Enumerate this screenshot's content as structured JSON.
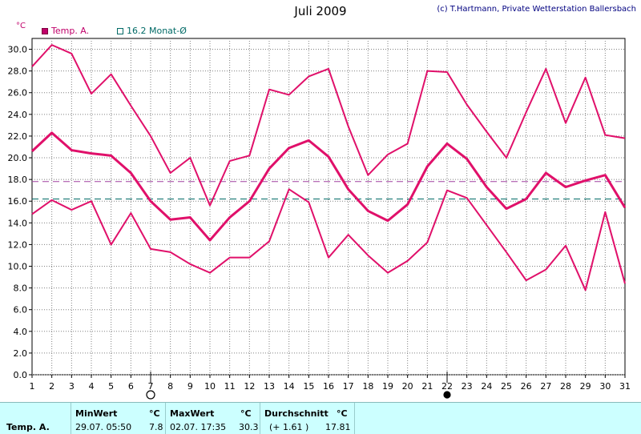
{
  "header": {
    "title": "Juli 2009",
    "copyright": "(c) T.Hartmann, Private Wetterstation Ballersbach",
    "unit_label": "°C"
  },
  "legend": {
    "temp_label": "Temp. A.",
    "avg_label": "16.2 Monat-Ø"
  },
  "colors": {
    "series": "#e0106a",
    "grid": "#808080",
    "avg_line": "#006a66",
    "mean_line": "#a040a0",
    "stats_bg": "#ccffff"
  },
  "chart_data": {
    "type": "line",
    "title": "Juli 2009",
    "ylabel": "°C",
    "xlabel": "",
    "x": [
      1,
      2,
      3,
      4,
      5,
      6,
      7,
      8,
      9,
      10,
      11,
      12,
      13,
      14,
      15,
      16,
      17,
      18,
      19,
      20,
      21,
      22,
      23,
      24,
      25,
      26,
      27,
      28,
      29,
      30,
      31
    ],
    "x_ticks": [
      "1",
      "2",
      "3",
      "4",
      "5",
      "6",
      "7",
      "8",
      "9",
      "10",
      "11",
      "12",
      "13",
      "14",
      "15",
      "16",
      "17",
      "18",
      "19",
      "20",
      "21",
      "22",
      "23",
      "24",
      "25",
      "26",
      "27",
      "28",
      "29",
      "30",
      "31"
    ],
    "y_ticks": [
      "0.0",
      "2.0",
      "4.0",
      "6.0",
      "8.0",
      "10.0",
      "12.0",
      "14.0",
      "16.0",
      "18.0",
      "20.0",
      "22.0",
      "24.0",
      "26.0",
      "28.0",
      "30.0"
    ],
    "ylim": [
      0,
      31
    ],
    "grid": true,
    "series": [
      {
        "name": "Temp. A.",
        "values": [
          28.4,
          30.4,
          29.6,
          25.9,
          27.7,
          24.8,
          22.0,
          18.6,
          20.0,
          15.6,
          19.7,
          20.2,
          26.3,
          25.8,
          27.5,
          28.2,
          22.9,
          18.4,
          20.3,
          21.3,
          28.0,
          27.9,
          24.9,
          22.4,
          20.0,
          24.2,
          28.2,
          23.2,
          27.4,
          22.1,
          21.8
        ]
      },
      {
        "name": "Temp. A.",
        "values": [
          20.6,
          22.3,
          20.7,
          20.4,
          20.2,
          18.6,
          16.0,
          14.3,
          14.5,
          12.4,
          14.5,
          16.0,
          19.0,
          20.9,
          21.6,
          20.1,
          17.1,
          15.1,
          14.2,
          15.7,
          19.2,
          21.3,
          19.9,
          17.3,
          15.3,
          16.2,
          18.6,
          17.3,
          17.9,
          18.4,
          15.4
        ]
      },
      {
        "name": "Temp. A.",
        "values": [
          14.8,
          16.1,
          15.2,
          16.0,
          12.0,
          14.9,
          11.6,
          11.3,
          10.2,
          9.4,
          10.8,
          10.8,
          12.3,
          17.1,
          15.9,
          10.8,
          12.9,
          11.0,
          9.4,
          10.5,
          12.2,
          17.0,
          16.3,
          13.8,
          11.3,
          8.7,
          9.7,
          11.9,
          7.8,
          15.0,
          8.4
        ]
      }
    ],
    "reference_lines": [
      {
        "name": "Monat-Ø",
        "value": 16.2
      },
      {
        "name": "Durchschnitt",
        "value": 17.81
      }
    ],
    "markers": [
      {
        "day": 7,
        "symbol": "open-circle"
      },
      {
        "day": 22,
        "symbol": "filled-circle"
      }
    ]
  },
  "stats": {
    "row_label": "Temp. A.",
    "min_header": "MinWert",
    "min_unit": "°C",
    "min_time": "29.07.  05:50",
    "min_value": "7.8",
    "max_header": "MaxWert",
    "max_unit": "°C",
    "max_time": "02.07.  17:35",
    "max_value": "30.3",
    "avg_header": "Durchschnitt",
    "avg_unit": "°C",
    "avg_diff": "(+ 1.61 )",
    "avg_value": "17.81"
  }
}
